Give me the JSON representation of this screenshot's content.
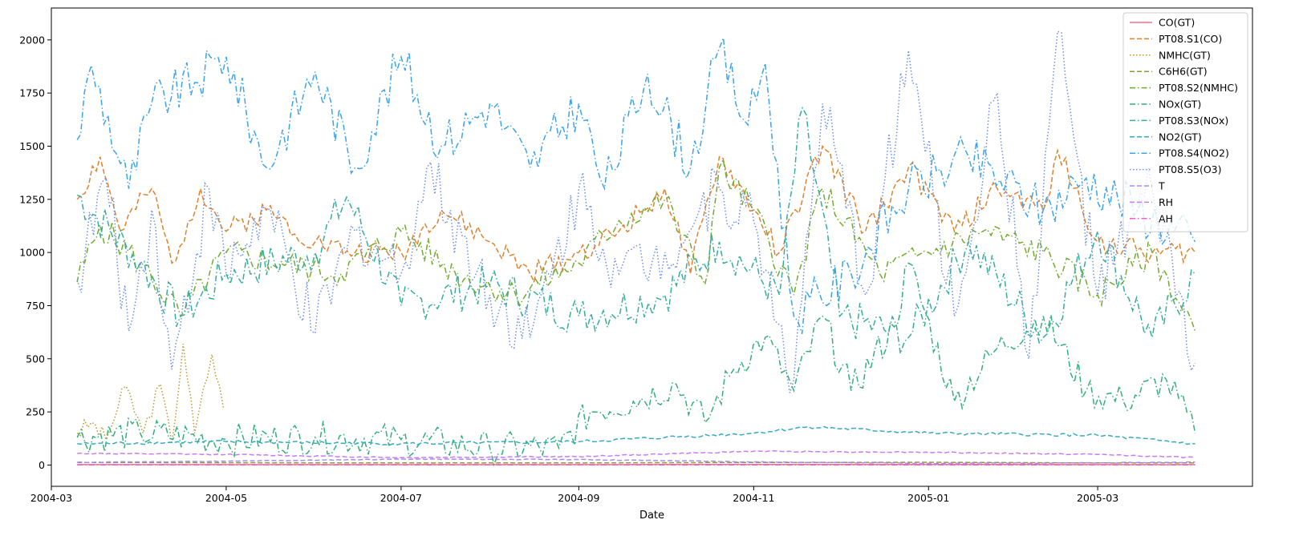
{
  "chart_data": {
    "type": "line",
    "title": "",
    "xlabel": "Date",
    "ylabel": "",
    "xlim": [
      "2004-03-01",
      "2005-04-24"
    ],
    "ylim": [
      -100,
      2150
    ],
    "x_ticks": [
      "2004-03-01",
      "2004-05-01",
      "2004-07-01",
      "2004-09-01",
      "2004-11-01",
      "2005-01-01",
      "2005-03-01"
    ],
    "x_tick_labels": [
      "2004-03",
      "2004-05",
      "2004-07",
      "2004-09",
      "2004-11",
      "2005-01",
      "2005-03"
    ],
    "y_ticks": [
      0,
      250,
      500,
      750,
      1000,
      1250,
      1500,
      1750,
      2000
    ],
    "grid": false,
    "legend_position": "top-right",
    "series": [
      {
        "name": "CO(GT)",
        "color": "#f77189",
        "dash": "solid",
        "x": [
          "2004-03-10",
          "2004-05-01",
          "2004-07-01",
          "2004-09-01",
          "2004-11-01",
          "2005-01-01",
          "2005-03-01",
          "2005-04-04"
        ],
        "y": [
          2,
          2,
          2,
          2,
          3,
          3,
          2,
          2
        ]
      },
      {
        "name": "PT08.S1(CO)",
        "color": "#e1812c",
        "dash": "dashed",
        "x": [
          "2004-03-10",
          "2004-03-18",
          "2004-03-25",
          "2004-04-05",
          "2004-04-12",
          "2004-04-22",
          "2004-05-01",
          "2004-05-15",
          "2004-06-01",
          "2004-06-15",
          "2004-07-01",
          "2004-07-15",
          "2004-08-01",
          "2004-08-15",
          "2004-09-01",
          "2004-09-15",
          "2004-10-01",
          "2004-10-10",
          "2004-10-20",
          "2004-11-01",
          "2004-11-10",
          "2004-11-25",
          "2004-12-10",
          "2004-12-25",
          "2005-01-10",
          "2005-01-25",
          "2005-02-10",
          "2005-02-15",
          "2005-03-01",
          "2005-03-20",
          "2005-04-04"
        ],
        "y": [
          1250,
          1450,
          1100,
          1300,
          950,
          1300,
          1100,
          1200,
          1050,
          1000,
          1000,
          1200,
          1050,
          900,
          1000,
          1100,
          1300,
          900,
          1450,
          1200,
          1000,
          1500,
          1100,
          1400,
          1100,
          1300,
          1200,
          1480,
          1050,
          1000,
          1000
        ]
      },
      {
        "name": "NMHC(GT)",
        "color": "#bb9832",
        "dash": "dotted",
        "x": [
          "2004-03-10",
          "2004-03-15",
          "2004-03-20",
          "2004-03-27",
          "2004-04-02",
          "2004-04-08",
          "2004-04-12",
          "2004-04-16",
          "2004-04-20",
          "2004-04-26",
          "2004-04-30"
        ],
        "y": [
          150,
          200,
          120,
          370,
          150,
          380,
          100,
          570,
          150,
          520,
          270
        ]
      },
      {
        "name": "C6H6(GT)",
        "color": "#8b9a3a",
        "dash": "dashed",
        "x": [
          "2004-03-10",
          "2004-05-01",
          "2004-07-01",
          "2004-09-01",
          "2004-11-01",
          "2005-01-01",
          "2005-03-01",
          "2005-04-04"
        ],
        "y": [
          12,
          11,
          10,
          10,
          12,
          13,
          10,
          10
        ]
      },
      {
        "name": "PT08.S2(NMHC)",
        "color": "#72ab2f",
        "dash": "dashdot",
        "x": [
          "2004-03-10",
          "2004-03-18",
          "2004-04-01",
          "2004-04-15",
          "2004-05-01",
          "2004-05-20",
          "2004-06-10",
          "2004-07-01",
          "2004-07-20",
          "2004-08-10",
          "2004-09-01",
          "2004-09-15",
          "2004-10-01",
          "2004-10-15",
          "2004-10-20",
          "2004-11-01",
          "2004-11-15",
          "2004-11-25",
          "2004-12-15",
          "2005-01-01",
          "2005-01-20",
          "2005-02-10",
          "2005-03-01",
          "2005-03-20",
          "2005-04-04"
        ],
        "y": [
          860,
          1130,
          950,
          700,
          1000,
          950,
          900,
          1100,
          900,
          800,
          950,
          1150,
          1250,
          850,
          1400,
          1200,
          800,
          1300,
          900,
          1000,
          1100,
          1000,
          800,
          1000,
          630
        ]
      },
      {
        "name": "NOx(GT)",
        "color": "#33b07a",
        "dash": "dashdot",
        "x": [
          "2004-03-10",
          "2004-04-01",
          "2004-05-01",
          "2004-06-01",
          "2004-07-01",
          "2004-08-01",
          "2004-08-25",
          "2004-09-05",
          "2004-09-20",
          "2004-10-05",
          "2004-10-15",
          "2004-10-25",
          "2004-11-05",
          "2004-11-15",
          "2004-11-25",
          "2004-12-05",
          "2004-12-20",
          "2004-12-25",
          "2005-01-10",
          "2005-01-25",
          "2005-02-10",
          "2005-02-25",
          "2005-03-10",
          "2005-03-25",
          "2005-04-04"
        ],
        "y": [
          130,
          150,
          120,
          130,
          120,
          80,
          80,
          250,
          300,
          380,
          200,
          450,
          600,
          350,
          700,
          350,
          650,
          950,
          300,
          550,
          700,
          350,
          300,
          400,
          150
        ]
      },
      {
        "name": "PT08.S3(NOx)",
        "color": "#35ad9c",
        "dash": "dashdot",
        "x": [
          "2004-03-10",
          "2004-04-01",
          "2004-04-15",
          "2004-05-01",
          "2004-06-01",
          "2004-06-12",
          "2004-07-01",
          "2004-08-01",
          "2004-09-01",
          "2004-10-01",
          "2004-10-20",
          "2004-11-10",
          "2004-11-18",
          "2004-12-01",
          "2004-12-25",
          "2005-01-15",
          "2005-02-10",
          "2005-03-01",
          "2005-03-20",
          "2005-04-04"
        ],
        "y": [
          1270,
          950,
          700,
          900,
          1000,
          1260,
          750,
          850,
          700,
          800,
          1050,
          800,
          1680,
          700,
          600,
          1050,
          600,
          1100,
          600,
          900
        ]
      },
      {
        "name": "NO2(GT)",
        "color": "#38a9c5",
        "dash": "dashed",
        "x": [
          "2004-03-10",
          "2004-05-01",
          "2004-07-01",
          "2004-09-01",
          "2004-10-01",
          "2004-11-01",
          "2004-11-20",
          "2005-01-01",
          "2005-03-01",
          "2005-04-04"
        ],
        "y": [
          100,
          110,
          100,
          110,
          130,
          150,
          180,
          150,
          140,
          100
        ]
      },
      {
        "name": "PT08.S4(NO2)",
        "color": "#3ba3ec",
        "dash": "dashdot",
        "x": [
          "2004-03-10",
          "2004-03-15",
          "2004-03-28",
          "2004-04-05",
          "2004-04-20",
          "2004-05-01",
          "2004-05-15",
          "2004-06-01",
          "2004-06-15",
          "2004-07-01",
          "2004-07-15",
          "2004-08-01",
          "2004-08-15",
          "2004-09-01",
          "2004-09-10",
          "2004-09-25",
          "2004-10-10",
          "2004-10-20",
          "2004-10-30",
          "2004-11-05",
          "2004-11-15",
          "2004-12-05",
          "2004-12-25",
          "2005-01-15",
          "2005-02-10",
          "2005-02-25",
          "2005-03-15",
          "2005-04-04"
        ],
        "y": [
          1530,
          1880,
          1300,
          1700,
          1800,
          1920,
          1400,
          1850,
          1400,
          1920,
          1500,
          1700,
          1400,
          1700,
          1300,
          1840,
          1400,
          1960,
          1600,
          1890,
          700,
          900,
          1300,
          1450,
          1200,
          1350,
          1200,
          1050
        ]
      },
      {
        "name": "PT08.S5(O3)",
        "color": "#6b8ee9",
        "dash": "dotted",
        "x": [
          "2004-03-10",
          "2004-03-20",
          "2004-03-28",
          "2004-04-05",
          "2004-04-12",
          "2004-04-25",
          "2004-05-01",
          "2004-05-15",
          "2004-06-01",
          "2004-06-15",
          "2004-07-01",
          "2004-07-10",
          "2004-08-01",
          "2004-08-15",
          "2004-09-01",
          "2004-09-15",
          "2004-10-01",
          "2004-10-20",
          "2004-11-01",
          "2004-11-15",
          "2004-11-25",
          "2004-12-10",
          "2004-12-25",
          "2005-01-10",
          "2005-01-25",
          "2005-02-05",
          "2005-02-15",
          "2005-03-01",
          "2005-03-20",
          "2005-04-04"
        ],
        "y": [
          870,
          1350,
          630,
          1200,
          450,
          1300,
          900,
          1200,
          620,
          1100,
          900,
          1400,
          800,
          600,
          1300,
          900,
          1000,
          1300,
          1150,
          400,
          1700,
          800,
          1950,
          700,
          1750,
          500,
          2040,
          800,
          1300,
          480
        ]
      },
      {
        "name": "T",
        "color": "#a48cf4",
        "dash": "dashed",
        "x": [
          "2004-03-10",
          "2004-05-01",
          "2004-07-01",
          "2004-09-01",
          "2004-11-01",
          "2005-01-01",
          "2005-03-01",
          "2005-04-04"
        ],
        "y": [
          13,
          18,
          28,
          26,
          15,
          8,
          10,
          14
        ]
      },
      {
        "name": "RH",
        "color": "#cc7af4",
        "dash": "dashed",
        "x": [
          "2004-03-10",
          "2004-05-01",
          "2004-07-01",
          "2004-09-01",
          "2004-11-01",
          "2005-01-01",
          "2005-03-01",
          "2005-04-04"
        ],
        "y": [
          55,
          50,
          35,
          40,
          65,
          60,
          50,
          35
        ]
      },
      {
        "name": "AH",
        "color": "#f45fc6",
        "dash": "dashdot",
        "x": [
          "2004-03-10",
          "2004-05-01",
          "2004-07-01",
          "2004-09-01",
          "2004-11-01",
          "2005-01-01",
          "2005-03-01",
          "2005-04-04"
        ],
        "y": [
          1,
          1,
          1,
          1,
          1,
          1,
          1,
          1
        ]
      }
    ]
  }
}
